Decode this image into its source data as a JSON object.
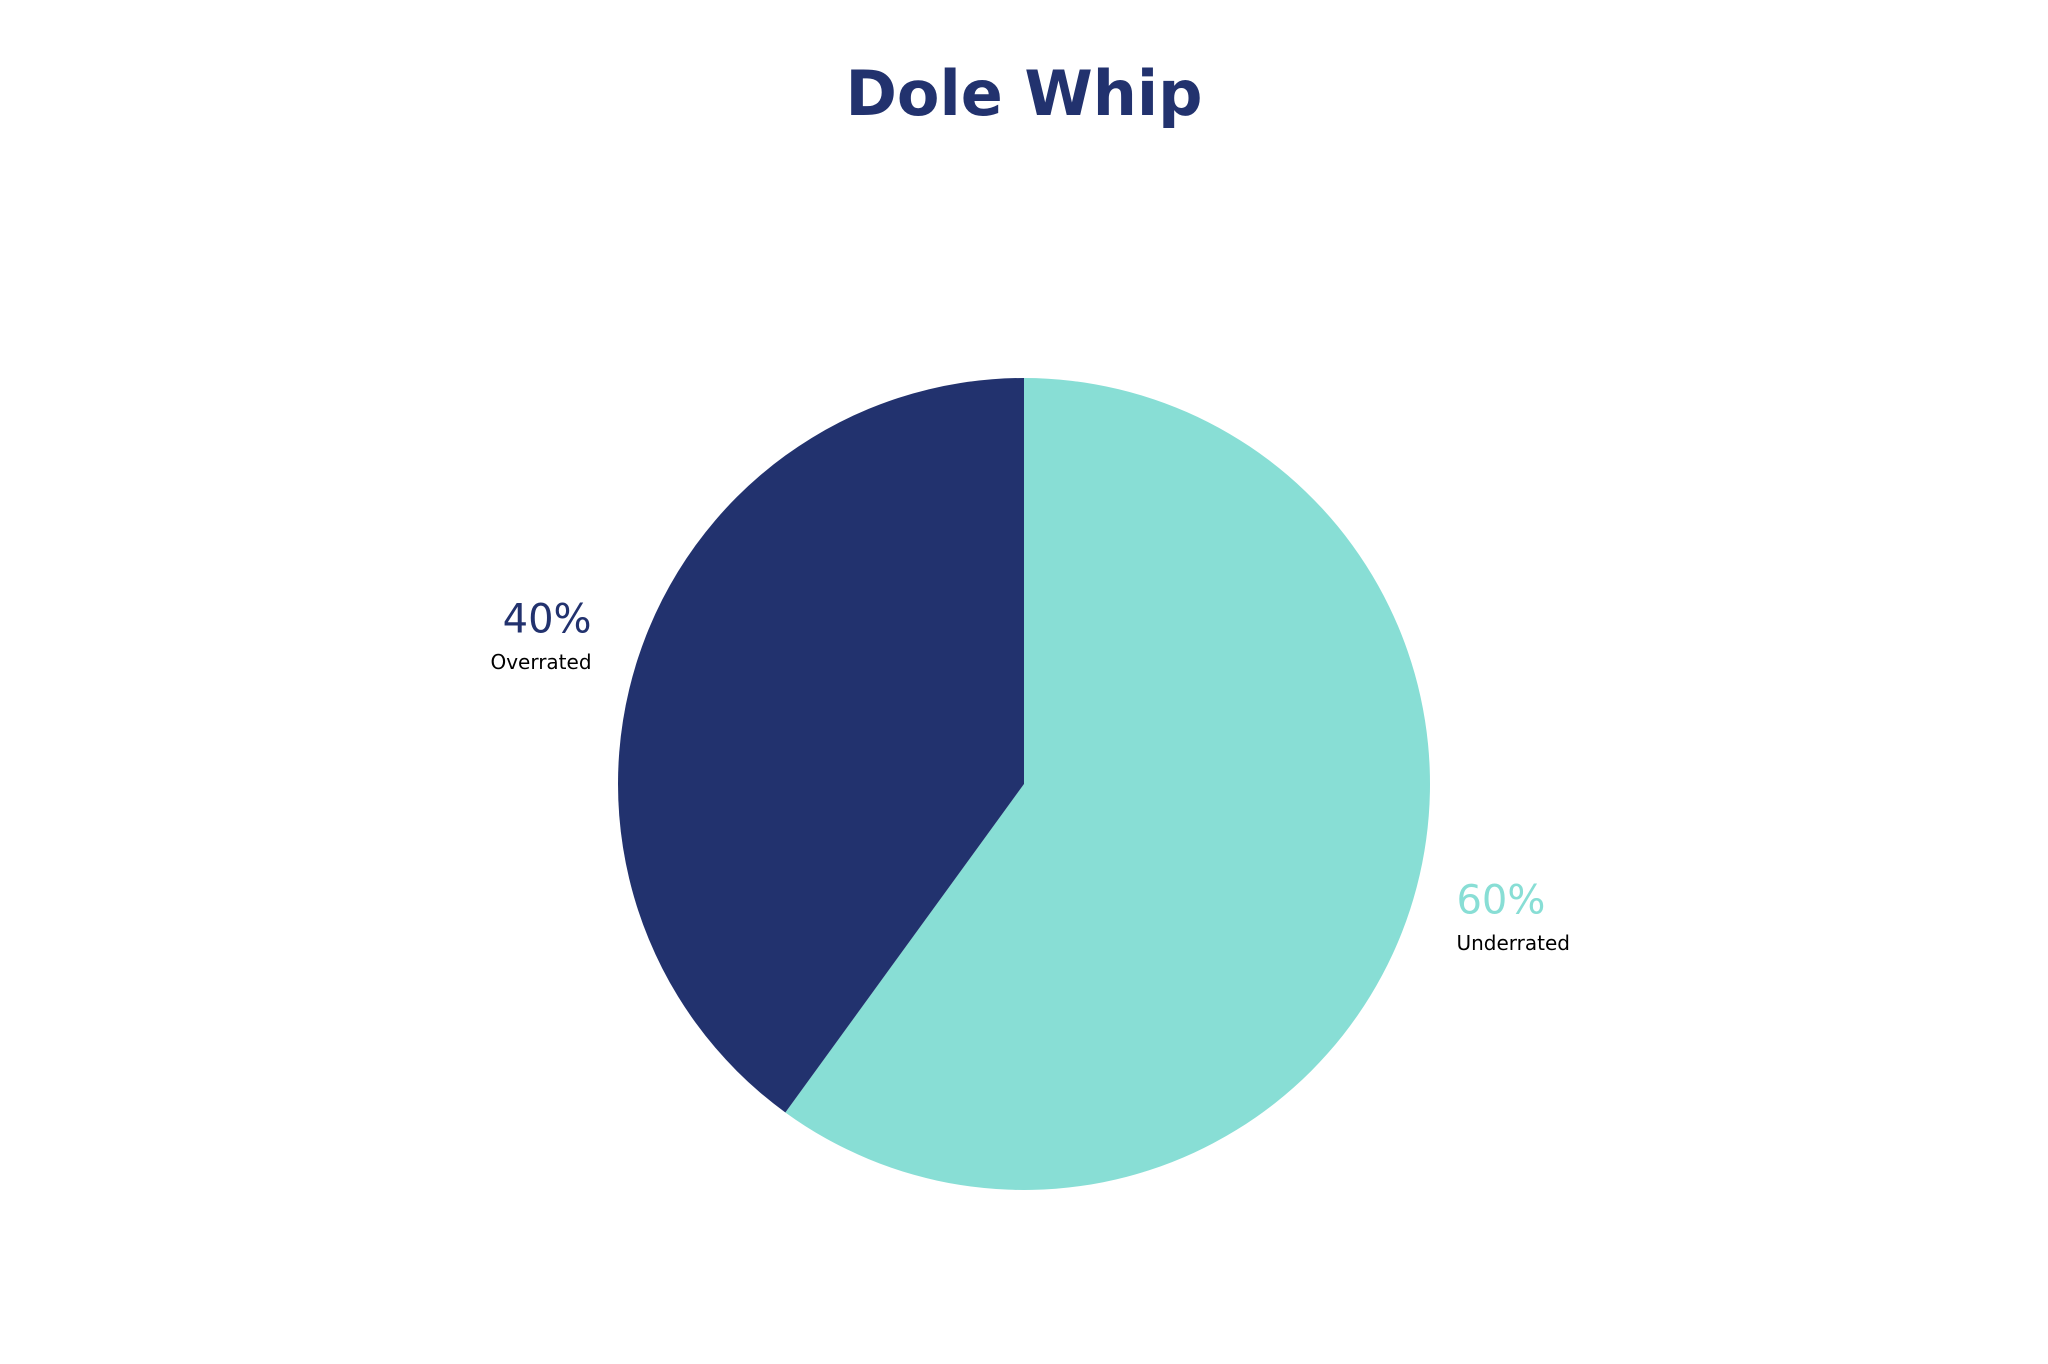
{
  "chart_data": {
    "type": "pie",
    "title": "Dole Whip",
    "categories": [
      "Underrated",
      "Overrated"
    ],
    "values": [
      60,
      40
    ],
    "value_labels": [
      "60%",
      "40%"
    ],
    "colors": [
      "#88ded5",
      "#22326e"
    ]
  }
}
